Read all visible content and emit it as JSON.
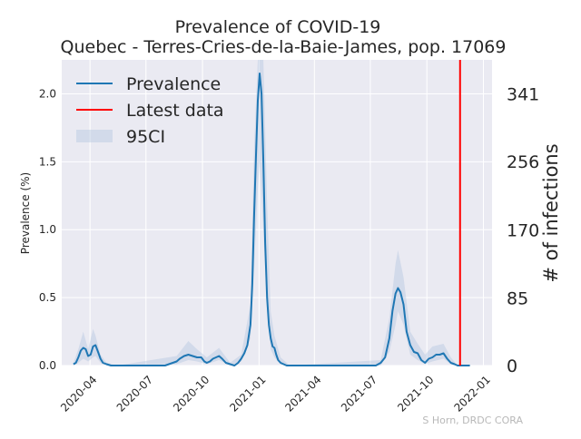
{
  "chart_data": {
    "type": "line",
    "title": "Prevalence of COVID-19",
    "subtitle": "Quebec - Terres-Cries-de-la-Baie-James, pop. 17069",
    "ylabel_left": "Prevalence (%)",
    "ylabel_right": "# of infections",
    "credit": "S Horn, DRDC CORA",
    "ylim": [
      0,
      2.25
    ],
    "xlim": [
      "2020-02-15",
      "2022-01-15"
    ],
    "x_ticks": [
      "2020-04",
      "2020-07",
      "2020-10",
      "2021-01",
      "2021-04",
      "2021-07",
      "2021-10",
      "2022-01"
    ],
    "y_ticks_left": [
      "0.0",
      "0.5",
      "1.0",
      "1.5",
      "2.0"
    ],
    "y_ticks_right": [
      "0",
      "85",
      "170",
      "256",
      "341"
    ],
    "latest_data_date": "2021-11-24",
    "legend": {
      "position": "top-left",
      "prevalence_label": "Prevalence",
      "latest_label": "Latest data",
      "ci_label": "95CI"
    },
    "colors": {
      "line": "#1f77b4",
      "band": "#b0c4de",
      "latest": "#ff0000",
      "plot_bg": "#eaeaf2",
      "grid": "#ffffff"
    },
    "series": [
      {
        "name": "Prevalence",
        "x": [
          "2020-03-05",
          "2020-03-09",
          "2020-03-13",
          "2020-03-17",
          "2020-03-21",
          "2020-03-25",
          "2020-03-29",
          "2020-04-02",
          "2020-04-06",
          "2020-04-10",
          "2020-04-14",
          "2020-04-18",
          "2020-04-22",
          "2020-04-28",
          "2020-05-05",
          "2020-05-15",
          "2020-06-01",
          "2020-07-01",
          "2020-08-01",
          "2020-08-20",
          "2020-08-25",
          "2020-09-01",
          "2020-09-08",
          "2020-09-15",
          "2020-09-22",
          "2020-09-29",
          "2020-10-04",
          "2020-10-08",
          "2020-10-13",
          "2020-10-18",
          "2020-10-23",
          "2020-10-28",
          "2020-11-02",
          "2020-11-08",
          "2020-11-15",
          "2020-11-22",
          "2020-11-28",
          "2020-12-03",
          "2020-12-08",
          "2020-12-13",
          "2020-12-18",
          "2020-12-21",
          "2020-12-24",
          "2020-12-27",
          "2020-12-30",
          "2021-01-02",
          "2021-01-05",
          "2021-01-08",
          "2021-01-11",
          "2021-01-14",
          "2021-01-17",
          "2021-01-20",
          "2021-01-23",
          "2021-01-26",
          "2021-01-29",
          "2021-02-01",
          "2021-02-05",
          "2021-02-10",
          "2021-02-15",
          "2021-02-20",
          "2021-02-27",
          "2021-03-10",
          "2021-04-01",
          "2021-06-01",
          "2021-07-10",
          "2021-07-18",
          "2021-07-25",
          "2021-08-01",
          "2021-08-06",
          "2021-08-11",
          "2021-08-15",
          "2021-08-19",
          "2021-08-24",
          "2021-08-29",
          "2021-09-04",
          "2021-09-10",
          "2021-09-16",
          "2021-09-22",
          "2021-09-28",
          "2021-10-04",
          "2021-10-10",
          "2021-10-16",
          "2021-10-22",
          "2021-10-28",
          "2021-11-03",
          "2021-11-09",
          "2021-11-15",
          "2021-11-20",
          "2021-11-24",
          "2021-12-01",
          "2021-12-10"
        ],
        "values": [
          0.01,
          0.02,
          0.06,
          0.11,
          0.13,
          0.12,
          0.07,
          0.08,
          0.14,
          0.15,
          0.1,
          0.05,
          0.02,
          0.01,
          0.0,
          0.0,
          0.0,
          0.0,
          0.0,
          0.03,
          0.05,
          0.07,
          0.08,
          0.07,
          0.06,
          0.06,
          0.03,
          0.02,
          0.03,
          0.05,
          0.06,
          0.07,
          0.05,
          0.02,
          0.01,
          0.0,
          0.02,
          0.05,
          0.09,
          0.15,
          0.3,
          0.6,
          1.1,
          1.55,
          1.95,
          2.15,
          2.0,
          1.5,
          0.9,
          0.5,
          0.3,
          0.2,
          0.14,
          0.13,
          0.08,
          0.04,
          0.02,
          0.01,
          0.0,
          0.0,
          0.0,
          0.0,
          0.0,
          0.0,
          0.0,
          0.02,
          0.06,
          0.2,
          0.4,
          0.53,
          0.57,
          0.54,
          0.45,
          0.25,
          0.15,
          0.1,
          0.09,
          0.04,
          0.02,
          0.05,
          0.06,
          0.08,
          0.08,
          0.09,
          0.05,
          0.02,
          0.01,
          0.0,
          0.0,
          0.0,
          0.0
        ]
      },
      {
        "name": "95CI",
        "x": [
          "2020-03-05",
          "2020-03-13",
          "2020-03-21",
          "2020-03-29",
          "2020-04-06",
          "2020-04-10",
          "2020-04-18",
          "2020-04-28",
          "2020-05-15",
          "2020-08-20",
          "2020-09-08",
          "2020-09-22",
          "2020-10-08",
          "2020-10-28",
          "2020-11-15",
          "2020-12-03",
          "2020-12-18",
          "2020-12-24",
          "2020-12-30",
          "2021-01-02",
          "2021-01-08",
          "2021-01-14",
          "2021-01-20",
          "2021-01-26",
          "2021-02-05",
          "2021-02-20",
          "2021-07-18",
          "2021-08-01",
          "2021-08-11",
          "2021-08-15",
          "2021-08-24",
          "2021-09-04",
          "2021-09-16",
          "2021-09-28",
          "2021-10-10",
          "2021-10-28",
          "2021-11-09",
          "2021-11-20",
          "2021-12-10"
        ],
        "lower": [
          0.0,
          0.02,
          0.05,
          0.03,
          0.06,
          0.07,
          0.02,
          0.0,
          0.0,
          0.01,
          0.04,
          0.03,
          0.01,
          0.04,
          0.0,
          0.03,
          0.2,
          0.7,
          1.3,
          1.5,
          1.0,
          0.4,
          0.12,
          0.06,
          0.01,
          0.0,
          0.0,
          0.1,
          0.3,
          0.4,
          0.3,
          0.08,
          0.04,
          0.01,
          0.03,
          0.05,
          0.01,
          0.0,
          0.0
        ],
        "upper": [
          0.02,
          0.12,
          0.25,
          0.12,
          0.27,
          0.22,
          0.08,
          0.02,
          0.0,
          0.07,
          0.18,
          0.12,
          0.06,
          0.13,
          0.02,
          0.08,
          0.45,
          1.6,
          2.25,
          2.25,
          2.25,
          1.2,
          0.4,
          0.22,
          0.06,
          0.0,
          0.04,
          0.35,
          0.75,
          0.85,
          0.65,
          0.25,
          0.16,
          0.08,
          0.14,
          0.16,
          0.06,
          0.0,
          0.0
        ]
      }
    ]
  }
}
